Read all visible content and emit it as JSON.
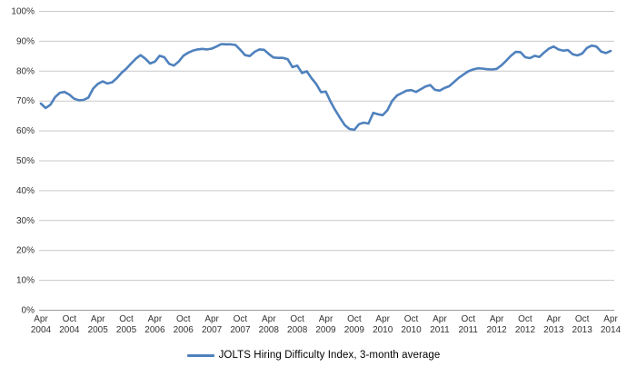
{
  "chart_data": {
    "type": "line",
    "title": "",
    "grid": "horizontal",
    "legend_position": "bottom",
    "ylim": [
      0,
      100
    ],
    "y_tick_labels": [
      "0%",
      "10%",
      "20%",
      "30%",
      "40%",
      "50%",
      "60%",
      "70%",
      "80%",
      "90%",
      "100%"
    ],
    "y_tick_values": [
      0,
      10,
      20,
      30,
      40,
      50,
      60,
      70,
      80,
      90,
      100
    ],
    "x_tick_labels": [
      "Apr 2004",
      "Oct 2004",
      "Apr 2005",
      "Oct 2005",
      "Apr 2006",
      "Oct 2006",
      "Apr 2007",
      "Oct 2007",
      "Apr 2008",
      "Oct 2008",
      "Apr 2009",
      "Oct 2009",
      "Apr 2010",
      "Oct 2010",
      "Apr 2011",
      "Oct 2011",
      "Apr 2012",
      "Oct 2012",
      "Apr 2013",
      "Oct 2013",
      "Apr 2014"
    ],
    "x_tick_every_n_points": 6,
    "series": [
      {
        "name": "JOLTS Hiring Difficulty Index, 3-month average",
        "color": "#4F81BD",
        "unit": "%",
        "x_monthly_from": "Apr 2004",
        "x_monthly_to": "Apr 2014",
        "values": [
          69.0,
          67.5,
          68.6,
          71.2,
          72.6,
          72.9,
          72.0,
          70.6,
          70.1,
          70.2,
          71.0,
          74.0,
          75.6,
          76.4,
          75.7,
          76.1,
          77.5,
          79.3,
          80.7,
          82.4,
          84.0,
          85.2,
          84.0,
          82.4,
          83.0,
          85.0,
          84.5,
          82.3,
          81.7,
          83.0,
          85.0,
          86.0,
          86.7,
          87.1,
          87.3,
          87.1,
          87.4,
          88.1,
          88.9,
          88.8,
          88.8,
          88.6,
          87.0,
          85.2,
          84.9,
          86.3,
          87.1,
          87.0,
          85.6,
          84.4,
          84.3,
          84.3,
          83.8,
          81.2,
          81.7,
          79.2,
          79.8,
          77.5,
          75.5,
          72.8,
          73.0,
          69.7,
          66.8,
          64.2,
          61.8,
          60.5,
          60.2,
          62.1,
          62.6,
          62.3,
          65.9,
          65.4,
          65.1,
          66.8,
          69.9,
          71.7,
          72.5,
          73.3,
          73.5,
          72.9,
          73.8,
          74.7,
          75.2,
          73.6,
          73.3,
          74.2,
          74.8,
          76.2,
          77.6,
          78.7,
          79.8,
          80.4,
          80.8,
          80.7,
          80.5,
          80.4,
          80.6,
          81.8,
          83.3,
          85.0,
          86.3,
          86.2,
          84.5,
          84.2,
          85.0,
          84.6,
          86.1,
          87.4,
          88.1,
          87.1,
          86.7,
          86.9,
          85.5,
          85.1,
          85.7,
          87.6,
          88.4,
          88.1,
          86.4,
          85.9,
          86.6
        ]
      }
    ]
  },
  "legend": {
    "label": "JOLTS Hiring Difficulty Index, 3-month average"
  },
  "colors": {
    "line": "#4F81BD",
    "gridline": "#C9C9C9",
    "axis_line": "#9A9A9A",
    "tick_text": "#333333",
    "background": "#FFFFFF"
  }
}
